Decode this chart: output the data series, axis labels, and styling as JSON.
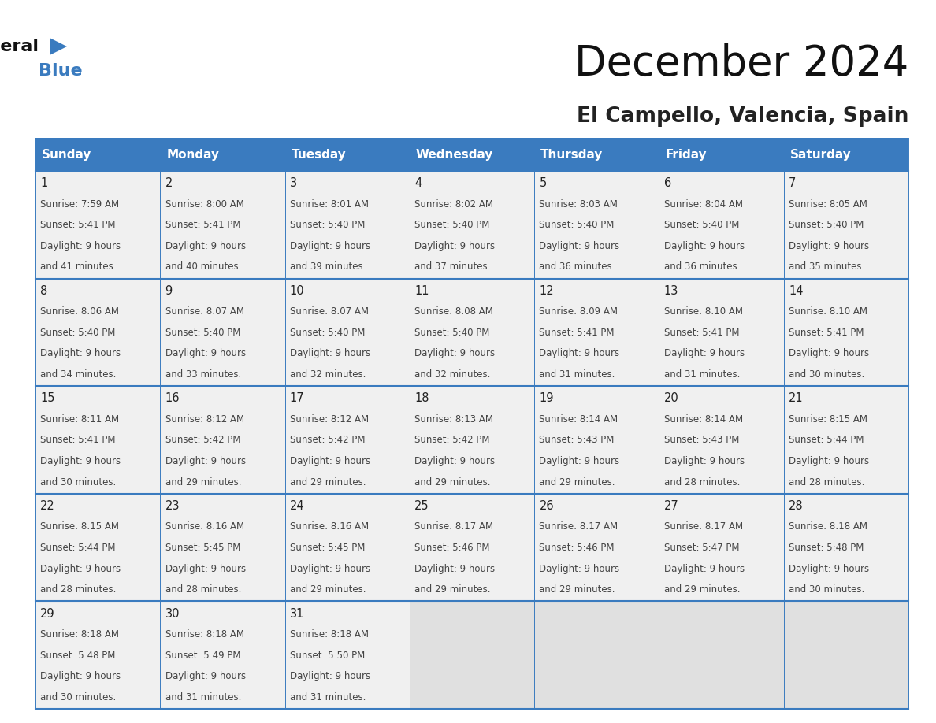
{
  "title": "December 2024",
  "subtitle": "El Campello, Valencia, Spain",
  "header_bg_color": "#3a7bbf",
  "header_text_color": "#ffffff",
  "cell_bg_light": "#f0f0f0",
  "cell_bg_empty": "#e0e0e0",
  "cell_text_color": "#444444",
  "day_number_color": "#222222",
  "border_color": "#3a7bbf",
  "days_of_week": [
    "Sunday",
    "Monday",
    "Tuesday",
    "Wednesday",
    "Thursday",
    "Friday",
    "Saturday"
  ],
  "calendar": [
    [
      {
        "day": 1,
        "sunrise": "7:59 AM",
        "sunset": "5:41 PM",
        "daylight": "9 hours and 41 minutes."
      },
      {
        "day": 2,
        "sunrise": "8:00 AM",
        "sunset": "5:41 PM",
        "daylight": "9 hours and 40 minutes."
      },
      {
        "day": 3,
        "sunrise": "8:01 AM",
        "sunset": "5:40 PM",
        "daylight": "9 hours and 39 minutes."
      },
      {
        "day": 4,
        "sunrise": "8:02 AM",
        "sunset": "5:40 PM",
        "daylight": "9 hours and 37 minutes."
      },
      {
        "day": 5,
        "sunrise": "8:03 AM",
        "sunset": "5:40 PM",
        "daylight": "9 hours and 36 minutes."
      },
      {
        "day": 6,
        "sunrise": "8:04 AM",
        "sunset": "5:40 PM",
        "daylight": "9 hours and 36 minutes."
      },
      {
        "day": 7,
        "sunrise": "8:05 AM",
        "sunset": "5:40 PM",
        "daylight": "9 hours and 35 minutes."
      }
    ],
    [
      {
        "day": 8,
        "sunrise": "8:06 AM",
        "sunset": "5:40 PM",
        "daylight": "9 hours and 34 minutes."
      },
      {
        "day": 9,
        "sunrise": "8:07 AM",
        "sunset": "5:40 PM",
        "daylight": "9 hours and 33 minutes."
      },
      {
        "day": 10,
        "sunrise": "8:07 AM",
        "sunset": "5:40 PM",
        "daylight": "9 hours and 32 minutes."
      },
      {
        "day": 11,
        "sunrise": "8:08 AM",
        "sunset": "5:40 PM",
        "daylight": "9 hours and 32 minutes."
      },
      {
        "day": 12,
        "sunrise": "8:09 AM",
        "sunset": "5:41 PM",
        "daylight": "9 hours and 31 minutes."
      },
      {
        "day": 13,
        "sunrise": "8:10 AM",
        "sunset": "5:41 PM",
        "daylight": "9 hours and 31 minutes."
      },
      {
        "day": 14,
        "sunrise": "8:10 AM",
        "sunset": "5:41 PM",
        "daylight": "9 hours and 30 minutes."
      }
    ],
    [
      {
        "day": 15,
        "sunrise": "8:11 AM",
        "sunset": "5:41 PM",
        "daylight": "9 hours and 30 minutes."
      },
      {
        "day": 16,
        "sunrise": "8:12 AM",
        "sunset": "5:42 PM",
        "daylight": "9 hours and 29 minutes."
      },
      {
        "day": 17,
        "sunrise": "8:12 AM",
        "sunset": "5:42 PM",
        "daylight": "9 hours and 29 minutes."
      },
      {
        "day": 18,
        "sunrise": "8:13 AM",
        "sunset": "5:42 PM",
        "daylight": "9 hours and 29 minutes."
      },
      {
        "day": 19,
        "sunrise": "8:14 AM",
        "sunset": "5:43 PM",
        "daylight": "9 hours and 29 minutes."
      },
      {
        "day": 20,
        "sunrise": "8:14 AM",
        "sunset": "5:43 PM",
        "daylight": "9 hours and 28 minutes."
      },
      {
        "day": 21,
        "sunrise": "8:15 AM",
        "sunset": "5:44 PM",
        "daylight": "9 hours and 28 minutes."
      }
    ],
    [
      {
        "day": 22,
        "sunrise": "8:15 AM",
        "sunset": "5:44 PM",
        "daylight": "9 hours and 28 minutes."
      },
      {
        "day": 23,
        "sunrise": "8:16 AM",
        "sunset": "5:45 PM",
        "daylight": "9 hours and 28 minutes."
      },
      {
        "day": 24,
        "sunrise": "8:16 AM",
        "sunset": "5:45 PM",
        "daylight": "9 hours and 29 minutes."
      },
      {
        "day": 25,
        "sunrise": "8:17 AM",
        "sunset": "5:46 PM",
        "daylight": "9 hours and 29 minutes."
      },
      {
        "day": 26,
        "sunrise": "8:17 AM",
        "sunset": "5:46 PM",
        "daylight": "9 hours and 29 minutes."
      },
      {
        "day": 27,
        "sunrise": "8:17 AM",
        "sunset": "5:47 PM",
        "daylight": "9 hours and 29 minutes."
      },
      {
        "day": 28,
        "sunrise": "8:18 AM",
        "sunset": "5:48 PM",
        "daylight": "9 hours and 30 minutes."
      }
    ],
    [
      {
        "day": 29,
        "sunrise": "8:18 AM",
        "sunset": "5:48 PM",
        "daylight": "9 hours and 30 minutes."
      },
      {
        "day": 30,
        "sunrise": "8:18 AM",
        "sunset": "5:49 PM",
        "daylight": "9 hours and 31 minutes."
      },
      {
        "day": 31,
        "sunrise": "8:18 AM",
        "sunset": "5:50 PM",
        "daylight": "9 hours and 31 minutes."
      },
      null,
      null,
      null,
      null
    ]
  ],
  "logo_triangle_color": "#3a7bbf",
  "fig_width": 11.88,
  "fig_height": 9.18,
  "dpi": 100
}
